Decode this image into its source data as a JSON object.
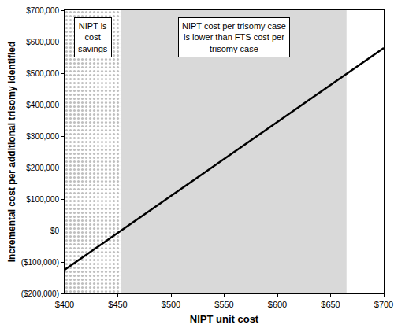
{
  "chart_data": {
    "type": "line",
    "x_label": "NIPT unit cost",
    "y_label": "Incremental cost per additional trisomy identified",
    "x": [
      400,
      500,
      600,
      700
    ],
    "values": [
      -125000,
      110000,
      345000,
      580000
    ],
    "color": "#000000",
    "xlim": [
      400,
      700
    ],
    "xticks": [
      {
        "value": 400,
        "label": "$400"
      },
      {
        "value": 450,
        "label": "$450"
      },
      {
        "value": 500,
        "label": "$500"
      },
      {
        "value": 550,
        "label": "$550"
      },
      {
        "value": 600,
        "label": "$600"
      },
      {
        "value": 650,
        "label": "$650"
      },
      {
        "value": 700,
        "label": "$700"
      }
    ],
    "ylim": [
      -200000,
      700000
    ],
    "yticks": [
      {
        "value": -200000,
        "label": "($200,000)"
      },
      {
        "value": -100000,
        "label": "($100,000)"
      },
      {
        "value": 0,
        "label": "$0"
      },
      {
        "value": 100000,
        "label": "$100,000"
      },
      {
        "value": 200000,
        "label": "$200,000"
      },
      {
        "value": 300000,
        "label": "$300,000"
      },
      {
        "value": 400000,
        "label": "$400,000"
      },
      {
        "value": 500000,
        "label": "$500,000"
      },
      {
        "value": 600000,
        "label": "$600,000"
      },
      {
        "value": 700000,
        "label": "$700,000"
      }
    ],
    "grid": false,
    "regions": [
      {
        "range": [
          400,
          453
        ],
        "label": [
          "NIPT is",
          "cost",
          "savings"
        ],
        "color": "#bfbfbf",
        "marker": "dots"
      },
      {
        "range": [
          453,
          665
        ],
        "label": [
          "NIPT cost per trisomy case",
          "is lower than FTS cost per",
          "trisomy case"
        ],
        "color": "#d9d9d9"
      }
    ]
  }
}
